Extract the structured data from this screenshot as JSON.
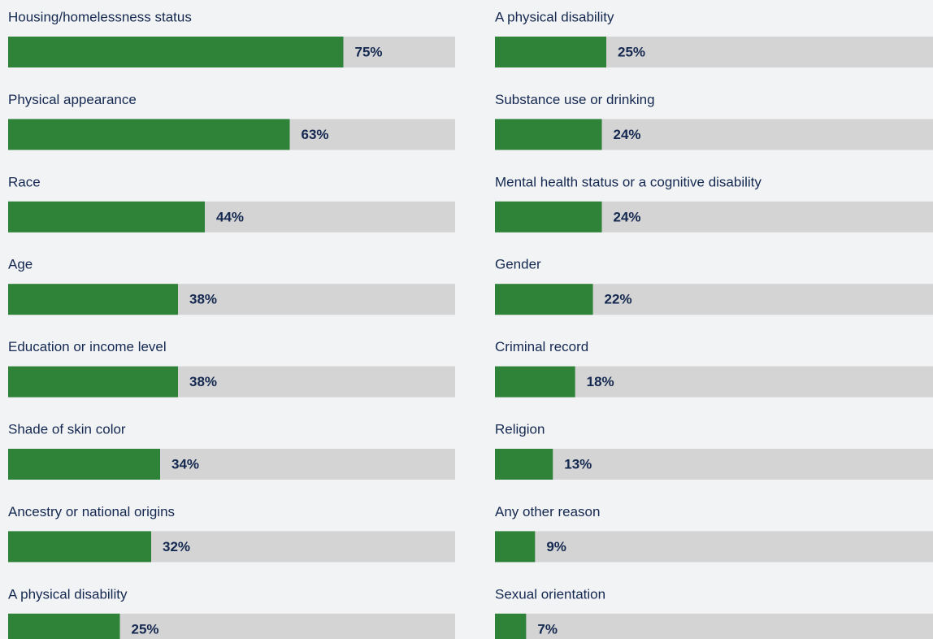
{
  "chart_data": [
    {
      "type": "hbar",
      "color": "#2e8338",
      "track_color": "#d4d4d4",
      "xlim": [
        0,
        100
      ],
      "categories": [
        "Housing/homelessness status",
        "Physical appearance",
        "Race",
        "Age",
        "Education or income level",
        "Shade of skin color",
        "Ancestry or national origins",
        "A physical disability"
      ],
      "values": [
        75,
        63,
        44,
        38,
        38,
        34,
        32,
        25
      ],
      "value_labels": [
        "75%",
        "63%",
        "44%",
        "38%",
        "38%",
        "34%",
        "32%",
        "25%"
      ]
    },
    {
      "type": "hbar",
      "color": "#2e8338",
      "track_color": "#d4d4d4",
      "xlim": [
        0,
        100
      ],
      "categories": [
        "A physical disability",
        "Substance use or drinking",
        "Mental health status or a cognitive disability",
        "Gender",
        "Criminal record",
        "Religion",
        "Any other reason",
        "Sexual orientation"
      ],
      "values": [
        25,
        24,
        24,
        22,
        18,
        13,
        9,
        7
      ],
      "value_labels": [
        "25%",
        "24%",
        "24%",
        "22%",
        "18%",
        "13%",
        "9%",
        "7%"
      ]
    }
  ]
}
